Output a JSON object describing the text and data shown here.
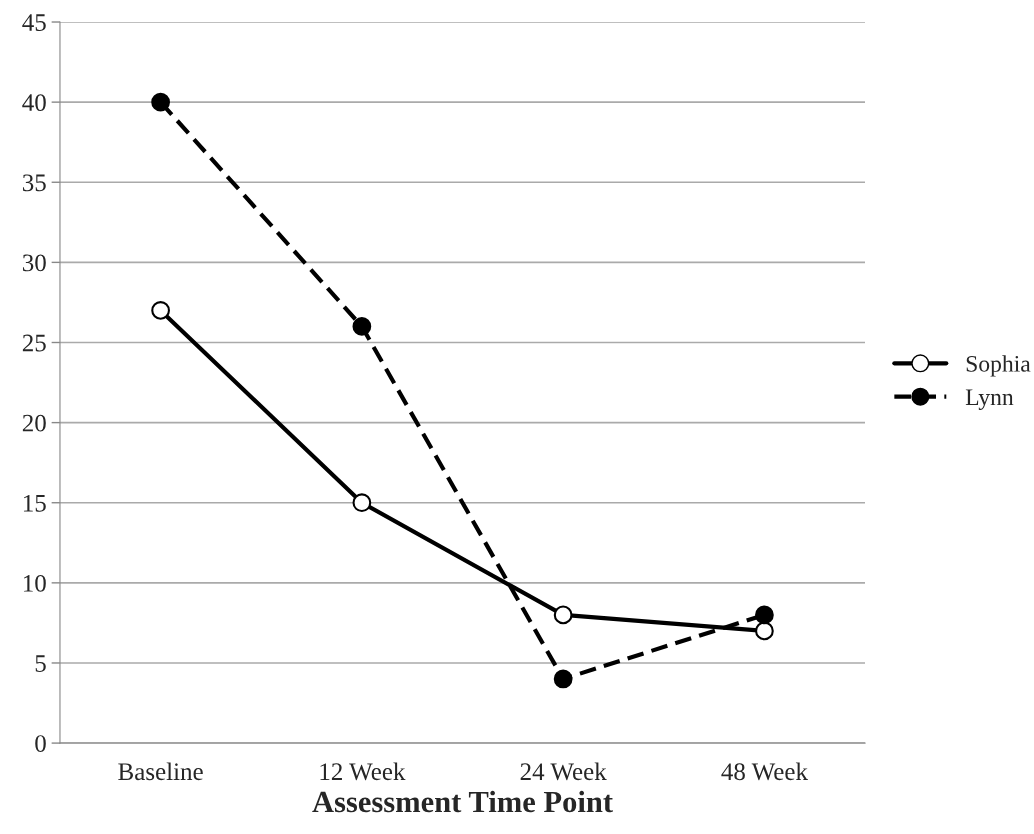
{
  "chart_data": {
    "type": "line",
    "xlabel": "Assessment Time Point",
    "categories": [
      "Baseline",
      "12 Week",
      "24 Week",
      "48 Week"
    ],
    "series": [
      {
        "name": "Sophia",
        "color": "#000000",
        "values": [
          27,
          15,
          8,
          7
        ],
        "line_style": "solid"
      },
      {
        "name": "Lynn",
        "color": "#000000",
        "values": [
          40,
          26,
          4,
          8
        ],
        "line_style": "dashed"
      }
    ],
    "ylim": [
      0,
      45
    ],
    "yticks": [
      0,
      5,
      10,
      15,
      20,
      25,
      30,
      35,
      40,
      45
    ],
    "grid": "y",
    "legend": "right",
    "marker": "circle"
  }
}
